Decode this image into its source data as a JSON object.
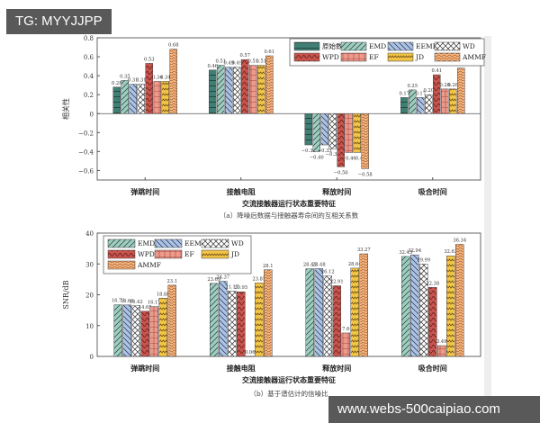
{
  "watermarks": {
    "top": "TG: MYYJJPP",
    "bottom": "www.webs-500caipiao.com"
  },
  "series_names": [
    "原始数据",
    "EMD",
    "EEMD",
    "WD",
    "WPD",
    "EF",
    "JD",
    "AMMF"
  ],
  "series_colors": {
    "原始数据": "#3f7f74",
    "EMD": "#9ccfc1",
    "EEMD": "#a9c3ea",
    "WD": "#ffffff",
    "WPD": "#c8544d",
    "EF": "#ec9a8c",
    "JD": "#f2c447",
    "AMMF": "#f5b37e"
  },
  "chart_data": [
    {
      "type": "bar",
      "title": "（a）降噪后数据与接触器寿命间的互相关系数",
      "xlabel": "交流接触器运行状态重要特征",
      "ylabel": "相关性",
      "categories": [
        "弹跳时间",
        "接触电阻",
        "释放时间",
        "吸合时间"
      ],
      "ylim": [
        -0.7,
        0.8
      ],
      "yticks": [
        -0.6,
        -0.4,
        -0.2,
        0,
        0.2,
        0.4,
        0.6,
        0.8
      ],
      "ytick_labels": [
        "−0.6",
        "−0.4",
        "−0.2",
        "0",
        "0.2",
        "0.4",
        "0.6",
        "0.8"
      ],
      "legend_position": "upper right (2 rows × 4)",
      "grid": false,
      "series": [
        {
          "name": "原始数据",
          "values": [
            0.28,
            0.46,
            -0.33,
            0.17
          ]
        },
        {
          "name": "EMD",
          "values": [
            0.35,
            0.51,
            -0.4,
            0.25
          ]
        },
        {
          "name": "EEMD",
          "values": [
            0.31,
            0.49,
            -0.33,
            0.17
          ]
        },
        {
          "name": "WD",
          "values": [
            0.31,
            0.49,
            -0.37,
            0.2
          ]
        },
        {
          "name": "WPD",
          "values": [
            0.53,
            0.57,
            -0.56,
            0.41
          ]
        },
        {
          "name": "EF",
          "values": [
            0.34,
            0.51,
            -0.41,
            0.26
          ]
        },
        {
          "name": "JD",
          "values": [
            0.34,
            0.51,
            -0.41,
            0.26
          ]
        },
        {
          "name": "AMMF",
          "values": [
            0.68,
            0.61,
            -0.58,
            0.48
          ]
        }
      ],
      "value_labels": [
        [
          "0.28",
          "0.35",
          "0.31",
          "0.31",
          "0.53",
          "0.34",
          "0.34",
          "0.68"
        ],
        [
          "0.46",
          "0.51",
          "0.49",
          "0.49",
          "0.57",
          "0.51",
          "0.51",
          "0.61"
        ],
        [
          "−0.33",
          "−0.40",
          "−0.33",
          "−0.37",
          "−0.56",
          "−0.41",
          "−0.4",
          "−0.58"
        ],
        [
          "0.17",
          "0.25",
          "0.17",
          "0.20",
          "0.41",
          "0.26",
          "0.26",
          "0.48"
        ]
      ]
    },
    {
      "type": "bar",
      "title": "（b）基于谱估计的信噪比",
      "xlabel": "交流接触器运行状态重要特征",
      "ylabel": "SNR/dB",
      "categories": [
        "弹跳时间",
        "接触电阻",
        "释放时间",
        "吸合时间"
      ],
      "ylim": [
        0,
        40
      ],
      "yticks": [
        0,
        10,
        20,
        30,
        40
      ],
      "ytick_labels": [
        "0",
        "10",
        "20",
        "30",
        "40"
      ],
      "legend_position": "upper left (3 rows)",
      "grid": false,
      "series": [
        {
          "name": "EMD",
          "values": [
            16.73,
            23.69,
            28.43,
            32.43
          ]
        },
        {
          "name": "EEMD",
          "values": [
            16.69,
            24.37,
            28.48,
            32.94
          ]
        },
        {
          "name": "WD",
          "values": [
            16.42,
            21.17,
            26.12,
            29.99
          ]
        },
        {
          "name": "WPD",
          "values": [
            14.65,
            20.95,
            22.91,
            22.38
          ]
        },
        {
          "name": "EF",
          "values": [
            16.17,
            0.06,
            7.6,
            3.49
          ]
        },
        {
          "name": "JD",
          "values": [
            18.88,
            23.85,
            28.64,
            32.63
          ]
        },
        {
          "name": "AMMF",
          "values": [
            23.1,
            28.1,
            33.27,
            36.34
          ]
        }
      ],
      "value_labels": [
        [
          "16.73",
          "16.69",
          "16.42",
          "14.65",
          "16.17",
          "18.88",
          "23.1"
        ],
        [
          "23.69",
          "24.37",
          "21.17",
          "20.95",
          "0.06",
          "23.85",
          "28.1"
        ],
        [
          "28.43",
          "28.48",
          "26.12",
          "22.91",
          "7.6",
          "28.64",
          "33.27"
        ],
        [
          "32.43",
          "32.94",
          "29.99",
          "22.38",
          "3.49",
          "32.63",
          "36.34"
        ]
      ]
    }
  ]
}
